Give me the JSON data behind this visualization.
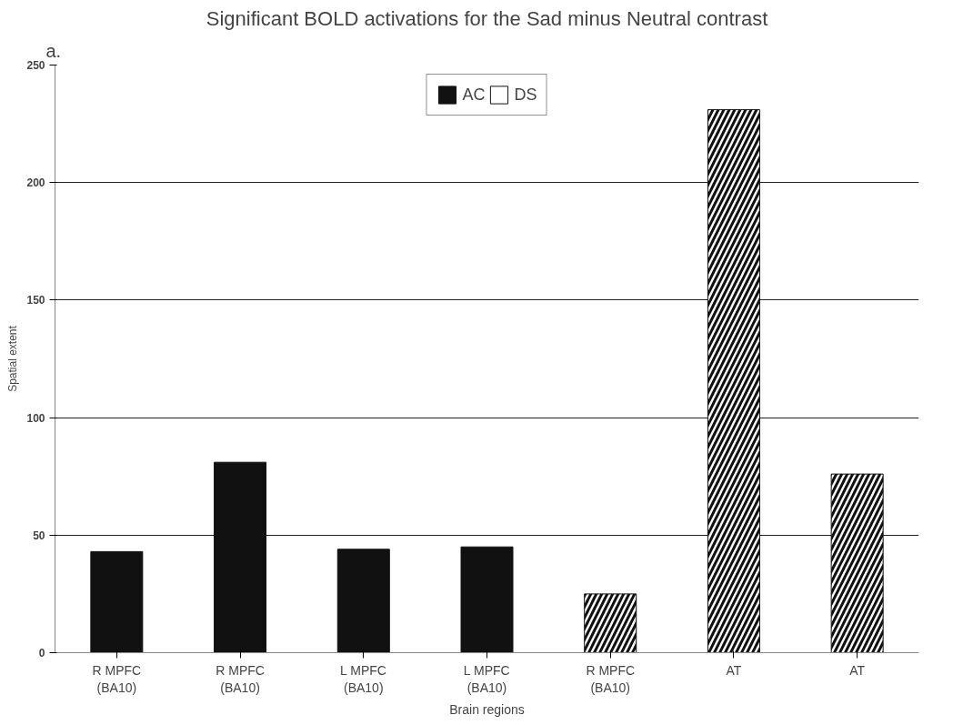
{
  "chart_data": {
    "type": "bar",
    "title": "Significant BOLD activations for the Sad minus Neutral contrast",
    "annotations": [
      "a."
    ],
    "xlabel": "Brain regions",
    "ylabel": "Spatial extent",
    "categories": [
      "R MPFC\n(BA10)",
      "R MPFC\n(BA10)",
      "L MPFC\n(BA10)",
      "L MPFC\n(BA10)",
      "R MPFC\n(BA10)",
      "AT",
      "AT"
    ],
    "series": [
      {
        "name": "AC",
        "color": "#111111",
        "values": [
          43,
          81,
          44,
          45,
          null,
          null,
          null
        ]
      },
      {
        "name": "DS",
        "color": "#ffffff",
        "values": [
          null,
          null,
          null,
          null,
          25,
          231,
          76
        ]
      }
    ],
    "ylim": [
      0,
      250
    ],
    "yticks": [
      0,
      50,
      100,
      150,
      200,
      250
    ],
    "grid": "y",
    "legend": "top"
  }
}
